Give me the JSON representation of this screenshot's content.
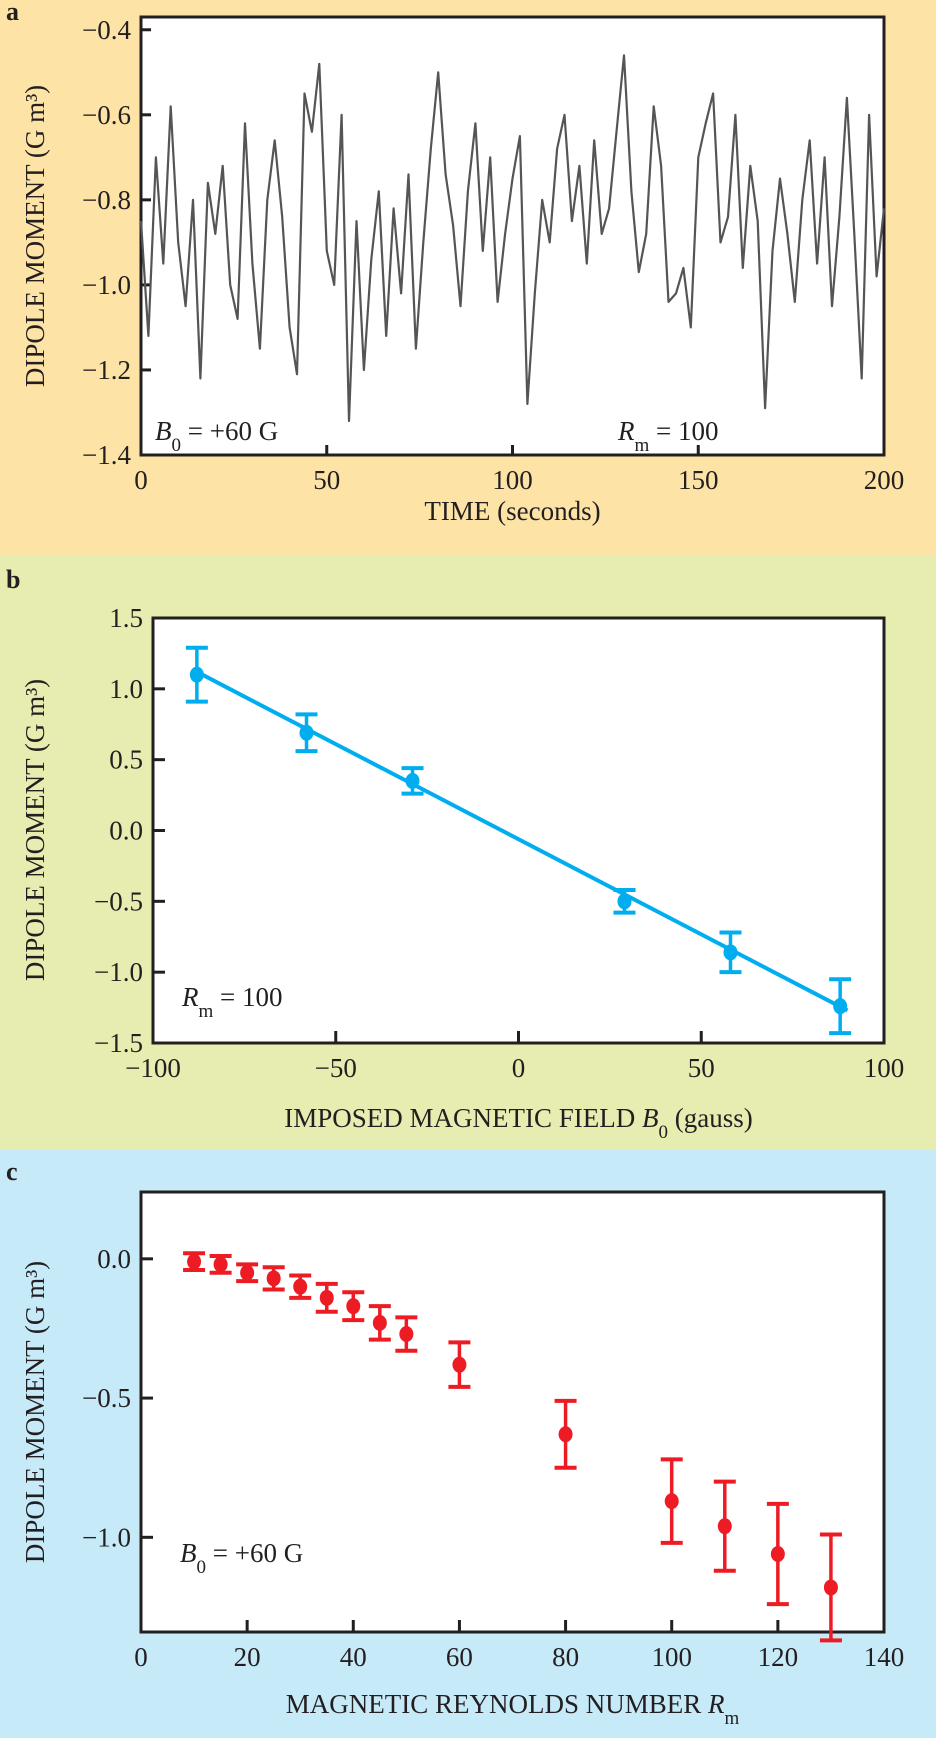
{
  "colors": {
    "panel_a_bg": "#fee3a6",
    "panel_b_bg": "#e7edb0",
    "panel_c_bg": "#c7eaf9",
    "series_a": "#555558",
    "series_b": "#00aeef",
    "series_c": "#ed1c24",
    "axis": "#231f20"
  },
  "chart_data": [
    {
      "panel_label": "a",
      "type": "line",
      "xlabel": "TIME (seconds)",
      "ylabel": "DIPOLE MOMENT (G m³)",
      "xlim": [
        0,
        200
      ],
      "ylim": [
        -1.4,
        -0.37
      ],
      "xticks": [
        0,
        50,
        100,
        150,
        200
      ],
      "xtick_labels": [
        "0",
        "50",
        "100",
        "150",
        "200"
      ],
      "yticks": [
        -1.4,
        -1.2,
        -1.0,
        -0.8,
        -0.6,
        -0.4
      ],
      "ytick_labels": [
        "−1.4",
        "−1.2",
        "−1.0",
        "−0.8",
        "−0.6",
        "−0.4"
      ],
      "grid": false,
      "annotations": [
        {
          "symbol": "B",
          "sub": "0",
          "rest": " = +60 G"
        },
        {
          "symbol": "R",
          "sub": "m",
          "rest": " = 100"
        }
      ],
      "x_range": [
        0,
        200
      ],
      "values": [
        -0.85,
        -1.12,
        -0.7,
        -0.95,
        -0.58,
        -0.9,
        -1.05,
        -0.8,
        -1.22,
        -0.76,
        -0.88,
        -0.72,
        -1.0,
        -1.08,
        -0.62,
        -0.95,
        -1.15,
        -0.8,
        -0.66,
        -0.84,
        -1.1,
        -1.21,
        -0.55,
        -0.64,
        -0.48,
        -0.92,
        -1.0,
        -0.6,
        -1.32,
        -0.85,
        -1.2,
        -0.94,
        -0.78,
        -1.12,
        -0.82,
        -1.02,
        -0.74,
        -1.15,
        -0.9,
        -0.68,
        -0.5,
        -0.74,
        -0.86,
        -1.05,
        -0.78,
        -0.62,
        -0.92,
        -0.7,
        -1.04,
        -0.88,
        -0.75,
        -0.65,
        -1.28,
        -1.02,
        -0.8,
        -0.9,
        -0.68,
        -0.6,
        -0.85,
        -0.72,
        -0.95,
        -0.66,
        -0.88,
        -0.82,
        -0.64,
        -0.46,
        -0.78,
        -0.97,
        -0.88,
        -0.58,
        -0.72,
        -1.04,
        -1.02,
        -0.96,
        -1.1,
        -0.7,
        -0.62,
        -0.55,
        -0.9,
        -0.84,
        -0.6,
        -0.96,
        -0.72,
        -0.85,
        -1.29,
        -0.92,
        -0.75,
        -0.88,
        -1.04,
        -0.8,
        -0.66,
        -0.95,
        -0.7,
        -1.05,
        -0.84,
        -0.56,
        -0.88,
        -1.22,
        -0.6,
        -0.98,
        -0.82
      ]
    },
    {
      "panel_label": "b",
      "type": "scatter",
      "xlabel": "IMPOSED MAGNETIC FIELD B0 (gauss)",
      "xlabel_parts": {
        "pre": "IMPOSED MAGNETIC FIELD ",
        "symbol": "B",
        "sub": "0",
        "post": " (gauss)"
      },
      "ylabel": "DIPOLE MOMENT (G m³)",
      "xlim": [
        -100,
        100
      ],
      "ylim": [
        -1.5,
        1.5
      ],
      "xticks": [
        -100,
        -50,
        0,
        50,
        100
      ],
      "xtick_labels": [
        "−100",
        "−50",
        "0",
        "50",
        "100"
      ],
      "yticks": [
        -1.5,
        -1.0,
        -0.5,
        0.0,
        0.5,
        1.0,
        1.5
      ],
      "ytick_labels": [
        "−1.5",
        "−1.0",
        "−0.5",
        "0.0",
        "0.5",
        "1.0",
        "1.5"
      ],
      "grid": false,
      "annotations": [
        {
          "symbol": "R",
          "sub": "m",
          "rest": " = 100"
        }
      ],
      "x": [
        -88,
        -58,
        -29,
        29,
        58,
        88
      ],
      "y": [
        1.1,
        0.69,
        0.35,
        -0.5,
        -0.86,
        -1.24
      ],
      "yerr": [
        0.19,
        0.13,
        0.09,
        0.08,
        0.14,
        0.19
      ],
      "fit_line": {
        "x": [
          -88,
          90
        ],
        "y": [
          1.12,
          -1.27
        ]
      }
    },
    {
      "panel_label": "c",
      "type": "scatter",
      "xlabel": "MAGNETIC REYNOLDS NUMBER Rm",
      "xlabel_parts": {
        "pre": "MAGNETIC REYNOLDS NUMBER ",
        "symbol": "R",
        "sub": "m",
        "post": ""
      },
      "ylabel": "DIPOLE MOMENT (G m³)",
      "xlim": [
        0,
        140
      ],
      "ylim": [
        -1.34,
        0.24
      ],
      "xticks": [
        0,
        20,
        40,
        60,
        80,
        100,
        120,
        140
      ],
      "xtick_labels": [
        "0",
        "20",
        "40",
        "60",
        "80",
        "100",
        "120",
        "140"
      ],
      "yticks": [
        -1.0,
        -0.5,
        0.0
      ],
      "ytick_labels": [
        "−1.0",
        "−0.5",
        "0.0"
      ],
      "grid": false,
      "annotations": [
        {
          "symbol": "B",
          "sub": "0",
          "rest": " = +60 G"
        }
      ],
      "x": [
        10,
        15,
        20,
        25,
        30,
        35,
        40,
        45,
        50,
        60,
        80,
        100,
        110,
        120,
        130
      ],
      "y": [
        -0.01,
        -0.02,
        -0.05,
        -0.07,
        -0.1,
        -0.14,
        -0.17,
        -0.23,
        -0.27,
        -0.38,
        -0.63,
        -0.87,
        -0.96,
        -1.06,
        -1.18
      ],
      "yerr": [
        0.03,
        0.03,
        0.03,
        0.04,
        0.04,
        0.05,
        0.05,
        0.06,
        0.06,
        0.08,
        0.12,
        0.15,
        0.16,
        0.18,
        0.19
      ]
    }
  ]
}
